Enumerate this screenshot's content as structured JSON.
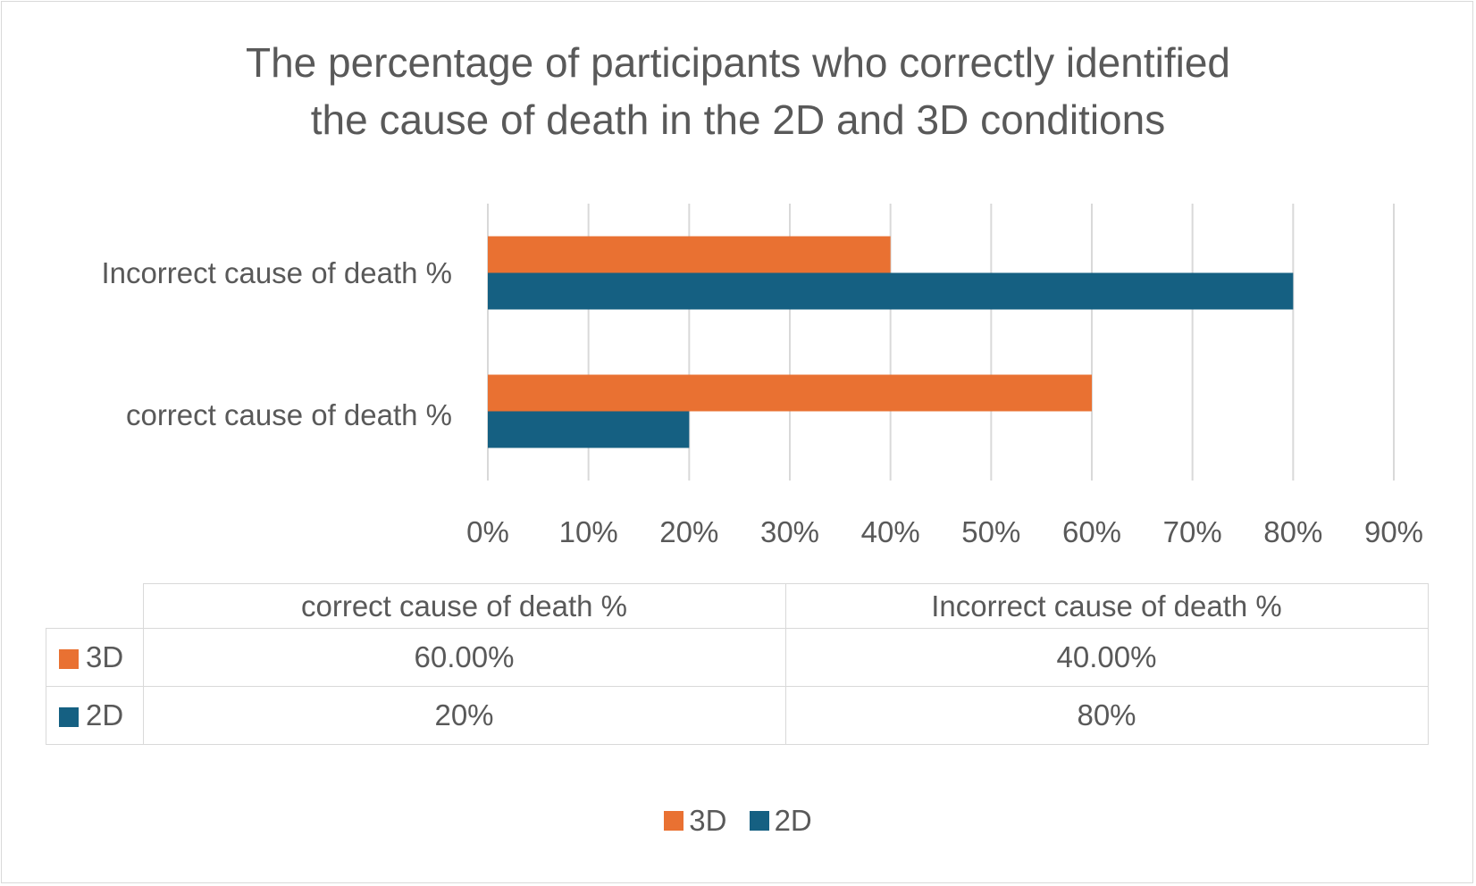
{
  "chart_data": {
    "type": "bar",
    "orientation": "horizontal",
    "title": "The percentage of participants who correctly identified the cause of death in the 2D and 3D conditions",
    "title_lines": [
      "The percentage of participants who correctly identified",
      "the cause of death in the 2D and 3D conditions"
    ],
    "categories": [
      "correct cause of death %",
      "Incorrect cause of death %"
    ],
    "series": [
      {
        "name": "3D",
        "color": "#e97132",
        "values": [
          60,
          40
        ],
        "table_values": [
          "60.00%",
          "40.00%"
        ]
      },
      {
        "name": "2D",
        "color": "#156082",
        "values": [
          20,
          80
        ],
        "table_values": [
          "20%",
          "80%"
        ]
      }
    ],
    "xlim": [
      0,
      90
    ],
    "ticks": [
      "0%",
      "10%",
      "20%",
      "30%",
      "40%",
      "50%",
      "60%",
      "70%",
      "80%",
      "90%"
    ],
    "grid": true,
    "data_table": true,
    "legend": "bottom"
  }
}
